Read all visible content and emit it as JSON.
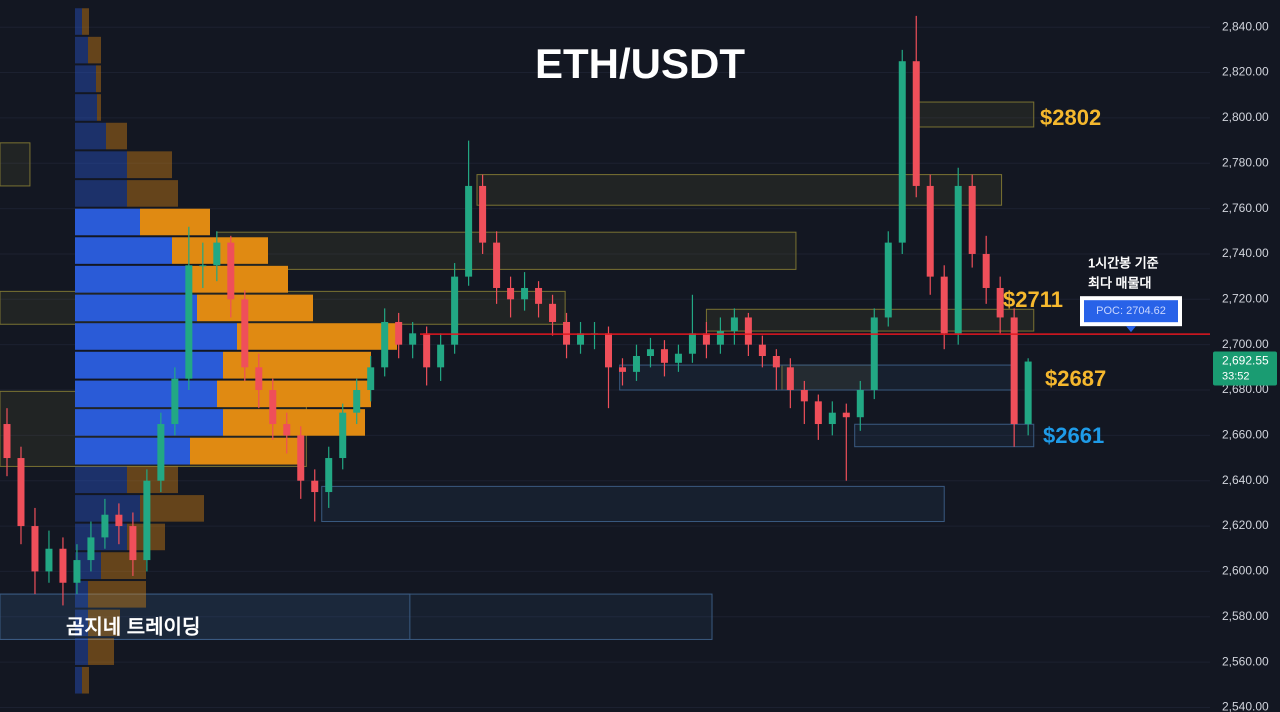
{
  "chart_data": {
    "type": "candlestick",
    "title": "ETH/USDT",
    "ylim": [
      2538,
      2852
    ],
    "xlim": [
      0,
      86.5
    ],
    "grid": true,
    "yticks": [
      {
        "value": 2540,
        "label": "2,540.00"
      },
      {
        "value": 2560,
        "label": "2,560.00"
      },
      {
        "value": 2580,
        "label": "2,580.00"
      },
      {
        "value": 2600,
        "label": "2,600.00"
      },
      {
        "value": 2620,
        "label": "2,620.00"
      },
      {
        "value": 2640,
        "label": "2,640.00"
      },
      {
        "value": 2660,
        "label": "2,660.00"
      },
      {
        "value": 2680,
        "label": "2,680.00"
      },
      {
        "value": 2700,
        "label": "2,700.00"
      },
      {
        "value": 2720,
        "label": "2,720.00"
      },
      {
        "value": 2740,
        "label": "2,740.00"
      },
      {
        "value": 2760,
        "label": "2,760.00"
      },
      {
        "value": 2780,
        "label": "2,780.00"
      },
      {
        "value": 2800,
        "label": "2,800.00"
      },
      {
        "value": 2820,
        "label": "2,820.00"
      },
      {
        "value": 2840,
        "label": "2,840.00"
      }
    ],
    "up_color": "#22a884",
    "down_color": "#ef4f5a",
    "open": [
      2665,
      2650,
      2620,
      2600,
      2610,
      2595,
      2605,
      2615,
      2625,
      2620,
      2605,
      2640,
      2665,
      2685,
      2735,
      2735,
      2745,
      2720,
      2690,
      2680,
      2665,
      2660,
      2640,
      2635,
      2650,
      2670,
      2680,
      2690,
      2710,
      2700,
      2705,
      2690,
      2700,
      2730,
      2770,
      2745,
      2725,
      2720,
      2725,
      2718,
      2710,
      2700,
      2705,
      2705,
      2690,
      2688,
      2695,
      2698,
      2692,
      2696,
      2705,
      2700,
      2706,
      2712,
      2700,
      2695,
      2690,
      2680,
      2675,
      2665,
      2670,
      2668,
      2680,
      2712,
      2745,
      2825,
      2770,
      2730,
      2705,
      2770,
      2740,
      2725,
      2712,
      2665
    ],
    "high": [
      2672,
      2655,
      2628,
      2618,
      2615,
      2612,
      2622,
      2632,
      2630,
      2626,
      2645,
      2670,
      2690,
      2752,
      2745,
      2750,
      2748,
      2724,
      2696,
      2685,
      2670,
      2664,
      2645,
      2655,
      2674,
      2685,
      2695,
      2716,
      2714,
      2710,
      2708,
      2705,
      2736,
      2790,
      2775,
      2750,
      2730,
      2732,
      2728,
      2722,
      2714,
      2710,
      2710,
      2708,
      2694,
      2700,
      2703,
      2702,
      2700,
      2722,
      2710,
      2712,
      2716,
      2714,
      2704,
      2698,
      2694,
      2684,
      2678,
      2675,
      2674,
      2684,
      2716,
      2750,
      2830,
      2845,
      2775,
      2735,
      2778,
      2775,
      2748,
      2730,
      2716,
      2694
    ],
    "low": [
      2642,
      2612,
      2590,
      2595,
      2585,
      2590,
      2600,
      2610,
      2612,
      2598,
      2600,
      2635,
      2660,
      2680,
      2725,
      2728,
      2712,
      2684,
      2672,
      2658,
      2652,
      2632,
      2622,
      2628,
      2645,
      2665,
      2675,
      2686,
      2694,
      2694,
      2682,
      2684,
      2696,
      2726,
      2740,
      2718,
      2712,
      2715,
      2712,
      2704,
      2694,
      2696,
      2698,
      2672,
      2682,
      2684,
      2690,
      2686,
      2688,
      2692,
      2694,
      2696,
      2700,
      2695,
      2690,
      2680,
      2672,
      2665,
      2658,
      2660,
      2640,
      2662,
      2676,
      2708,
      2740,
      2765,
      2722,
      2698,
      2700,
      2734,
      2718,
      2705,
      2655,
      2660
    ],
    "close": [
      2650,
      2620,
      2600,
      2610,
      2595,
      2605,
      2615,
      2625,
      2620,
      2605,
      2640,
      2665,
      2685,
      2735,
      2735,
      2745,
      2720,
      2690,
      2680,
      2665,
      2660,
      2640,
      2635,
      2650,
      2670,
      2680,
      2690,
      2710,
      2700,
      2705,
      2690,
      2700,
      2730,
      2770,
      2745,
      2725,
      2720,
      2725,
      2718,
      2710,
      2700,
      2705,
      2705,
      2690,
      2688,
      2695,
      2698,
      2692,
      2696,
      2705,
      2700,
      2706,
      2712,
      2700,
      2695,
      2690,
      2680,
      2675,
      2665,
      2670,
      2668,
      2680,
      2712,
      2745,
      2825,
      2770,
      2730,
      2705,
      2770,
      2740,
      2725,
      2712,
      2665,
      2692.55
    ],
    "volume_profile": {
      "bins": [
        2545.7,
        2558.3,
        2571.0,
        2583.6,
        2596.2,
        2608.9,
        2621.5,
        2634.1,
        2646.7,
        2659.4,
        2672.0,
        2684.6,
        2697.3,
        2709.9,
        2722.5,
        2735.2,
        2747.8,
        2760.4,
        2773.0,
        2785.7,
        2798.3,
        2810.9,
        2823.6,
        2836.2,
        2848.8
      ],
      "buy": [
        7,
        13,
        13,
        13,
        26,
        52,
        65,
        52,
        115,
        148,
        142,
        148,
        162,
        122,
        115,
        97,
        65,
        52,
        52,
        31,
        22,
        21,
        13,
        7
      ],
      "sell": [
        7,
        26,
        32,
        58,
        45,
        38,
        64,
        51,
        110,
        142,
        154,
        148,
        160,
        116,
        98,
        96,
        70,
        51,
        45,
        21,
        4,
        5,
        13,
        7
      ],
      "buy_color": "#2a5bd7",
      "sell_color": "#e08a12",
      "value_area": [
        2646.7,
        2760.4
      ]
    },
    "zones": [
      {
        "x": [
          0,
          2.14
        ],
        "range": [
          2770,
          2789
        ],
        "kind": "resistance"
      },
      {
        "x": [
          34.1,
          71.6
        ],
        "range": [
          2761.5,
          2775
        ],
        "kind": "resistance"
      },
      {
        "x": [
          15.5,
          56.9
        ],
        "range": [
          2733.2,
          2749.6
        ],
        "kind": "resistance"
      },
      {
        "x": [
          0,
          40.4
        ],
        "range": [
          2709,
          2723.5
        ],
        "kind": "resistance"
      },
      {
        "x": [
          50.5,
          73.9
        ],
        "range": [
          2706,
          2715.6
        ],
        "kind": "resistance"
      },
      {
        "x": [
          65.7,
          73.9
        ],
        "range": [
          2796,
          2807
        ],
        "kind": "resistance"
      },
      {
        "x": [
          0,
          21.9
        ],
        "range": [
          2646.3,
          2679.4
        ],
        "kind": "resistance"
      },
      {
        "x": [
          55.9,
          62.5
        ],
        "range": [
          2680,
          2691
        ],
        "kind": "resistance"
      },
      {
        "x": [
          44.3,
          72.7
        ],
        "range": [
          2680,
          2691
        ],
        "kind": "support"
      },
      {
        "x": [
          61.1,
          73.9
        ],
        "range": [
          2655,
          2664.9
        ],
        "kind": "support"
      },
      {
        "x": [
          23,
          67.5
        ],
        "range": [
          2622,
          2637.5
        ],
        "kind": "support"
      },
      {
        "x": [
          0,
          29.3
        ],
        "range": [
          2570,
          2590
        ],
        "kind": "support"
      },
      {
        "x": [
          0,
          50.9
        ],
        "range": [
          2570,
          2590
        ],
        "kind": "support"
      }
    ],
    "poc": {
      "value": 2704.62,
      "label": "POC: 2704.62",
      "note": [
        "1시간봉 기준",
        "최다 매물대"
      ]
    },
    "last_price": {
      "value": 2692.55,
      "label": "2,692.55",
      "countdown": "33:52"
    },
    "level_labels": [
      "$2802",
      "$2711",
      "$2687",
      "$2661"
    ],
    "watermark": "곰지네 트레이딩"
  }
}
